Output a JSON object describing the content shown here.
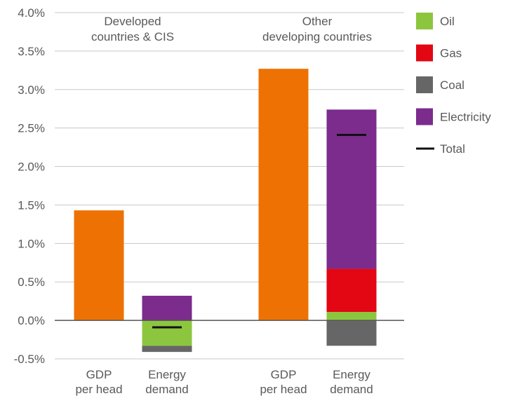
{
  "chart_data": {
    "type": "bar",
    "ylim": [
      -0.5,
      4.0
    ],
    "yticks": [
      "4.0%",
      "3.5%",
      "3.0%",
      "2.5%",
      "2.0%",
      "1.5%",
      "1.0%",
      "0.5%",
      "0.0%",
      "-0.5%"
    ],
    "grid": true,
    "legend_position": "right",
    "groups": [
      {
        "label_lines": [
          "Developed",
          "countries & CIS"
        ],
        "categories": [
          {
            "label_lines": [
              "GDP",
              "per head"
            ],
            "kind": "gdp",
            "value": 1.43
          },
          {
            "label_lines": [
              "Energy",
              "demand"
            ],
            "kind": "energy",
            "components": {
              "oil": -0.33,
              "gas": 0.0,
              "coal": -0.08,
              "electricity": 0.32
            },
            "total": -0.09
          }
        ]
      },
      {
        "label_lines": [
          "Other",
          "developing countries"
        ],
        "categories": [
          {
            "label_lines": [
              "GDP",
              "per head"
            ],
            "kind": "gdp",
            "value": 3.27
          },
          {
            "label_lines": [
              "Energy",
              "demand"
            ],
            "kind": "energy",
            "components": {
              "oil": 0.11,
              "gas": 0.56,
              "coal": -0.33,
              "electricity": 2.07
            },
            "total": 2.41
          }
        ]
      }
    ],
    "legend": [
      {
        "key": "oil",
        "label": "Oil",
        "color": "#8cc63f",
        "marker": "box"
      },
      {
        "key": "gas",
        "label": "Gas",
        "color": "#e30613",
        "marker": "box"
      },
      {
        "key": "coal",
        "label": "Coal",
        "color": "#666666",
        "marker": "box"
      },
      {
        "key": "electricity",
        "label": "Electricity",
        "color": "#7b2c8c",
        "marker": "box"
      },
      {
        "key": "total",
        "label": "Total",
        "color": "#111111",
        "marker": "line"
      }
    ],
    "colors": {
      "gdp": "#ee7203",
      "oil": "#8cc63f",
      "gas": "#e30613",
      "coal": "#666666",
      "electricity": "#7b2c8c",
      "total": "#111111",
      "grid": "#c8c8c8",
      "zero_line": "#555555"
    }
  }
}
